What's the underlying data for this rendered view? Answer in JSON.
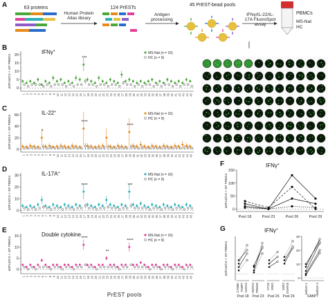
{
  "panel_a": {
    "label": "A",
    "proteins": "63 proteins",
    "arrow1": "Human Protein Atlas library",
    "prests": "124 PrESTs",
    "arrow2": "Antigen processing",
    "pools": "45 PrEST-bead pools",
    "arrow3": "IFNγ/IL-22/IL-17A FluoroSpot assay",
    "pbmc_title": "PBMCs",
    "pbmc_line1": "MS-Nat",
    "pbmc_line2": "HC",
    "colors": {
      "green": "#4aa83a",
      "orange": "#e88a1a",
      "teal": "#2ab0b8",
      "pink": "#e0409a",
      "red": "#d12f2f"
    }
  },
  "y_title": "ΔSFUs/2.5 × 10⁵ PBMCs",
  "x_title": "PrEST pools",
  "x_categories": [
    "1",
    "2",
    "3",
    "4",
    "5",
    "6",
    "7",
    "8",
    "9",
    "10",
    "11",
    "12",
    "13",
    "14",
    "15",
    "16",
    "17",
    "18",
    "19",
    "20",
    "21",
    "22",
    "23",
    "24",
    "25",
    "26",
    "27",
    "28",
    "29",
    "30",
    "31",
    "32",
    "33",
    "34",
    "35",
    "36",
    "37",
    "38",
    "39",
    "40",
    "41",
    "42",
    "43",
    "44",
    "45"
  ],
  "panels": [
    {
      "label": "B",
      "title": "IFNγ",
      "title_sup": "+",
      "color": "#4aa83a",
      "legend_ms": "MS-Nat",
      "legend_ms_n": "(n = 16)",
      "legend_hc": "HC",
      "legend_hc_n": "(n = 9)",
      "yticks": [
        "0",
        "5",
        "10",
        "15",
        "20"
      ],
      "ylim": [
        -2,
        22
      ],
      "ms_values": [
        4,
        3,
        4,
        3,
        5,
        2,
        4,
        3,
        6,
        4,
        5,
        3,
        4,
        3,
        6,
        5,
        14,
        5,
        4,
        3,
        6,
        4,
        3,
        5,
        4,
        3,
        8,
        4,
        5,
        4,
        3,
        4,
        3,
        4,
        5,
        3,
        4,
        3,
        5,
        4,
        3,
        4,
        3,
        5,
        4
      ],
      "hc_values": [
        2,
        1,
        2,
        2,
        2,
        1,
        2,
        1,
        2,
        2,
        2,
        1,
        2,
        1,
        2,
        2,
        4,
        2,
        2,
        1,
        2,
        2,
        1,
        2,
        2,
        1,
        3,
        2,
        2,
        1,
        2,
        1,
        2,
        2,
        1,
        2,
        1,
        2,
        2,
        1,
        2,
        1,
        2,
        2,
        1
      ],
      "significance": [
        {
          "pool": "17",
          "stars": "***"
        }
      ]
    },
    {
      "label": "C",
      "title": "IL-22",
      "title_sup": "+",
      "color": "#e88a1a",
      "legend_ms": "MS-Nat",
      "legend_ms_n": "(n = 16)",
      "legend_hc": "HC",
      "legend_hc_n": "(n = 9)",
      "yticks": [
        "0",
        "20",
        "40",
        "60"
      ],
      "ylim": [
        -5,
        65
      ],
      "ms_values": [
        5,
        4,
        6,
        5,
        4,
        20,
        5,
        6,
        4,
        5,
        6,
        5,
        4,
        6,
        5,
        4,
        36,
        6,
        5,
        4,
        5,
        6,
        20,
        5,
        4,
        6,
        5,
        4,
        30,
        6,
        5,
        8,
        5,
        4,
        6,
        5,
        4,
        6,
        5,
        4,
        6,
        5,
        8,
        6,
        5
      ],
      "hc_values": [
        2,
        2,
        3,
        2,
        2,
        4,
        2,
        3,
        2,
        2,
        3,
        2,
        2,
        3,
        2,
        2,
        5,
        3,
        2,
        2,
        2,
        3,
        4,
        2,
        2,
        3,
        2,
        2,
        4,
        3,
        2,
        3,
        2,
        2,
        3,
        2,
        2,
        3,
        2,
        2,
        3,
        2,
        3,
        3,
        2
      ],
      "significance": [
        {
          "pool": "6",
          "stars": "*"
        },
        {
          "pool": "17",
          "stars": "****"
        },
        {
          "pool": "29",
          "stars": "****"
        }
      ]
    },
    {
      "label": "D",
      "title": "IL-17A",
      "title_sup": "+",
      "color": "#2ab0b8",
      "legend_ms": "MS-Nat",
      "legend_ms_n": "(n = 16)",
      "legend_hc": "HC",
      "legend_hc_n": "(n = 9)",
      "yticks": [
        "0",
        "10",
        "20",
        "30"
      ],
      "ylim": [
        -2,
        32
      ],
      "ms_values": [
        4,
        3,
        4,
        3,
        5,
        9,
        4,
        3,
        5,
        4,
        3,
        5,
        4,
        3,
        5,
        4,
        16,
        5,
        4,
        3,
        5,
        4,
        9,
        5,
        4,
        3,
        5,
        4,
        16,
        5,
        4,
        6,
        4,
        3,
        5,
        4,
        3,
        5,
        4,
        3,
        5,
        4,
        3,
        5,
        4
      ],
      "hc_values": [
        2,
        1,
        2,
        1,
        2,
        3,
        2,
        1,
        2,
        2,
        1,
        2,
        2,
        1,
        2,
        2,
        4,
        2,
        2,
        1,
        2,
        2,
        3,
        2,
        2,
        1,
        2,
        2,
        4,
        2,
        2,
        2,
        2,
        1,
        2,
        2,
        1,
        2,
        2,
        1,
        2,
        2,
        1,
        2,
        2
      ],
      "significance": [
        {
          "pool": "17",
          "stars": "****"
        },
        {
          "pool": "29",
          "stars": "***"
        }
      ]
    },
    {
      "label": "E",
      "title": "Double cytokine",
      "title_sup": "",
      "color": "#e0409a",
      "legend_ms": "MS-Nat",
      "legend_ms_n": "(n = 16)",
      "legend_hc": "HC",
      "legend_hc_n": "(n = 9)",
      "yticks": [
        "0",
        "5",
        "10",
        "15"
      ],
      "ylim": [
        -2,
        16
      ],
      "ms_values": [
        2,
        1,
        2,
        1,
        2,
        4,
        2,
        1,
        2,
        2,
        1,
        2,
        2,
        1,
        2,
        2,
        11,
        2,
        2,
        1,
        2,
        2,
        5,
        2,
        2,
        1,
        2,
        2,
        10,
        2,
        2,
        3,
        2,
        1,
        2,
        2,
        1,
        2,
        2,
        1,
        2,
        2,
        1,
        2,
        2
      ],
      "hc_values": [
        1,
        0,
        1,
        0,
        1,
        1,
        1,
        0,
        1,
        1,
        0,
        1,
        1,
        0,
        1,
        1,
        2,
        1,
        1,
        0,
        1,
        1,
        1,
        1,
        1,
        0,
        1,
        1,
        2,
        1,
        1,
        1,
        1,
        0,
        1,
        1,
        0,
        1,
        1,
        0,
        1,
        1,
        0,
        1,
        1
      ],
      "significance": [
        {
          "pool": "17",
          "stars": "****"
        },
        {
          "pool": "23",
          "stars": "**"
        },
        {
          "pool": "29",
          "stars": "****"
        }
      ]
    }
  ],
  "panel_f": {
    "label": "F",
    "title": "IFNγ",
    "title_sup": "+",
    "x_categories": [
      "Pool 18",
      "Pool 23",
      "Pool 26",
      "Pool 29"
    ],
    "yticks": [
      "0",
      "50",
      "100",
      "150"
    ],
    "ylim": [
      -10,
      150
    ],
    "series": [
      {
        "values": [
          10,
          0,
          130,
          40
        ]
      },
      {
        "values": [
          30,
          5,
          85,
          0
        ]
      },
      {
        "values": [
          20,
          0,
          40,
          20
        ]
      },
      {
        "values": [
          5,
          0,
          10,
          5
        ]
      }
    ]
  },
  "panel_g": {
    "label": "G",
    "title": "IFNγ",
    "title_sup": "+",
    "ylim": [
      -10,
      55
    ],
    "groups": [
      {
        "name": "Pool 18",
        "proteins": [
          "CYDBK",
          "FABP7",
          "NOXA2"
        ],
        "before": [
          10,
          15,
          20,
          5
        ],
        "after": [
          30,
          42,
          35,
          20
        ]
      },
      {
        "name": "Pool 23",
        "proteins": [
          "MOXA2",
          "PRDM2"
        ],
        "before": [
          5,
          10,
          12,
          2
        ],
        "after": [
          40,
          45,
          38,
          30
        ]
      },
      {
        "name": "Pool 26",
        "proteins": [
          "NTN3",
          "SDK2"
        ],
        "before": [
          15,
          20,
          10
        ],
        "after": [
          25,
          32,
          18
        ]
      },
      {
        "name": "Pool 29",
        "proteins": [
          "SDK2",
          "SNAP25"
        ],
        "before": [
          20,
          25,
          15
        ],
        "after": [
          40,
          48,
          38
        ]
      }
    ],
    "inset": {
      "yticks": [
        "0",
        "10",
        "20",
        "30"
      ],
      "protein": "FABP7",
      "x_categories": [
        "Isoform 1",
        "Isoform 2"
      ],
      "before": [
        5,
        8,
        3,
        10,
        2
      ],
      "after": [
        25,
        28,
        20,
        26,
        18
      ]
    }
  }
}
